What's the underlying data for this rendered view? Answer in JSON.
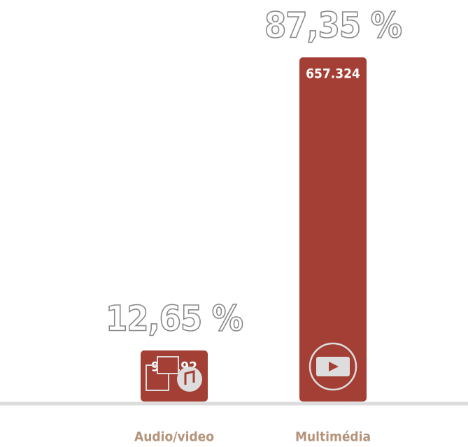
{
  "chart_data": {
    "type": "bar",
    "categories": [
      "Audio/video",
      "Multimédia"
    ],
    "values": [
      95192,
      657324
    ],
    "value_labels": [
      "95.192",
      "657.324"
    ],
    "annotations": [
      "12,65 %",
      "87,35 %"
    ],
    "color": "#a33f35",
    "category_color": "#b4937b"
  }
}
